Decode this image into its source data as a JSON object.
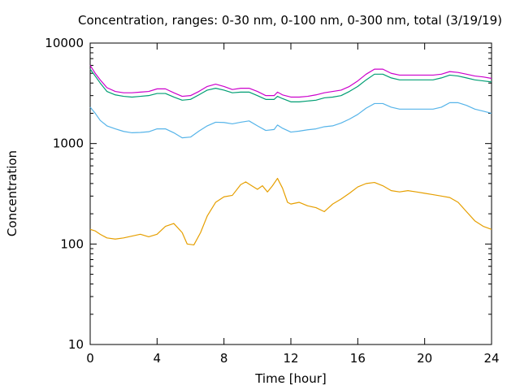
{
  "chart_data": {
    "type": "line",
    "title": "Concentration, ranges: 0-30 nm, 0-100 nm, 0-300 nm, total (3/19/19)",
    "xlabel": "Time [hour]",
    "ylabel": "Concentration",
    "xlim": [
      0,
      24
    ],
    "ylim": [
      10,
      10000
    ],
    "yscale": "log",
    "grid": false,
    "legend": "none",
    "x_ticks": [
      0,
      4,
      8,
      12,
      16,
      20,
      24
    ],
    "y_ticks": [
      10,
      100,
      1000,
      10000
    ],
    "x_tick_labels": [
      "0",
      "4",
      "8",
      "12",
      "16",
      "20",
      "24"
    ],
    "y_tick_labels": [
      "10",
      "100",
      "1000",
      "10000"
    ],
    "series": [
      {
        "color": "#e69f00",
        "x": [
          0,
          0.3,
          0.6,
          1,
          1.5,
          2,
          2.5,
          3,
          3.5,
          4,
          4.5,
          5,
          5.5,
          5.8,
          6.2,
          6.6,
          7,
          7.5,
          8,
          8.5,
          9,
          9.3,
          9.6,
          10,
          10.3,
          10.6,
          10.9,
          11.2,
          11.5,
          11.8,
          12,
          12.5,
          13,
          13.5,
          14,
          14.5,
          15,
          15.5,
          16,
          16.5,
          17,
          17.5,
          18,
          18.5,
          19,
          19.5,
          20,
          20.5,
          21,
          21.5,
          22,
          22.5,
          23,
          23.5,
          24
        ],
        "y": [
          140,
          135,
          125,
          115,
          112,
          115,
          120,
          125,
          118,
          125,
          150,
          160,
          130,
          100,
          98,
          130,
          190,
          260,
          295,
          305,
          390,
          415,
          385,
          350,
          380,
          330,
          380,
          450,
          360,
          260,
          250,
          260,
          240,
          230,
          210,
          250,
          280,
          320,
          370,
          400,
          410,
          380,
          340,
          330,
          340,
          330,
          320,
          310,
          300,
          290,
          260,
          210,
          170,
          150,
          140
        ]
      },
      {
        "color": "#56b4e9",
        "x": [
          0,
          0.3,
          0.6,
          1,
          1.5,
          2,
          2.5,
          3,
          3.5,
          4,
          4.5,
          5,
          5.5,
          6,
          6.5,
          7,
          7.5,
          8,
          8.5,
          9,
          9.5,
          10,
          10.5,
          11,
          11.2,
          11.5,
          12,
          12.5,
          13,
          13.5,
          14,
          14.5,
          15,
          15.5,
          16,
          16.5,
          17,
          17.5,
          18,
          18.5,
          19,
          19.5,
          20,
          20.5,
          21,
          21.5,
          22,
          22.5,
          23,
          23.5,
          24
        ],
        "y": [
          2300,
          2000,
          1700,
          1500,
          1400,
          1320,
          1280,
          1290,
          1310,
          1400,
          1400,
          1280,
          1140,
          1160,
          1330,
          1500,
          1630,
          1620,
          1570,
          1630,
          1680,
          1500,
          1350,
          1380,
          1530,
          1420,
          1300,
          1330,
          1370,
          1400,
          1470,
          1500,
          1600,
          1750,
          1950,
          2250,
          2500,
          2500,
          2300,
          2200,
          2200,
          2200,
          2200,
          2200,
          2300,
          2550,
          2550,
          2400,
          2200,
          2100,
          2000
        ]
      },
      {
        "color": "#009e73",
        "x": [
          0,
          0.3,
          0.6,
          1,
          1.5,
          2,
          2.5,
          3,
          3.5,
          4,
          4.5,
          5,
          5.5,
          6,
          6.5,
          7,
          7.5,
          8,
          8.5,
          9,
          9.5,
          10,
          10.5,
          11,
          11.2,
          11.5,
          12,
          12.5,
          13,
          13.5,
          14,
          14.5,
          15,
          15.5,
          16,
          16.5,
          17,
          17.5,
          18,
          18.5,
          19,
          19.5,
          20,
          20.5,
          21,
          21.5,
          22,
          22.5,
          23,
          23.5,
          24
        ],
        "y": [
          5500,
          4700,
          4000,
          3300,
          3050,
          2950,
          2900,
          2950,
          3000,
          3150,
          3150,
          2900,
          2700,
          2750,
          3050,
          3400,
          3550,
          3400,
          3200,
          3250,
          3250,
          3000,
          2750,
          2750,
          2950,
          2800,
          2600,
          2600,
          2650,
          2700,
          2850,
          2900,
          3000,
          3300,
          3700,
          4300,
          4900,
          4900,
          4500,
          4300,
          4300,
          4300,
          4300,
          4300,
          4500,
          4800,
          4700,
          4500,
          4300,
          4200,
          4100
        ]
      },
      {
        "color": "#cc00cc",
        "x": [
          0,
          0.3,
          0.6,
          1,
          1.5,
          2,
          2.5,
          3,
          3.5,
          4,
          4.5,
          5,
          5.5,
          6,
          6.5,
          7,
          7.5,
          8,
          8.5,
          9,
          9.5,
          10,
          10.5,
          11,
          11.2,
          11.5,
          12,
          12.5,
          13,
          13.5,
          14,
          14.5,
          15,
          15.5,
          16,
          16.5,
          17,
          17.5,
          18,
          18.5,
          19,
          19.5,
          20,
          20.5,
          21,
          21.5,
          22,
          22.5,
          23,
          23.5,
          24
        ],
        "y": [
          6000,
          5000,
          4300,
          3600,
          3300,
          3200,
          3200,
          3250,
          3300,
          3500,
          3500,
          3200,
          2950,
          3000,
          3300,
          3700,
          3900,
          3700,
          3450,
          3550,
          3550,
          3300,
          3000,
          3000,
          3250,
          3050,
          2900,
          2900,
          2950,
          3050,
          3200,
          3300,
          3400,
          3700,
          4200,
          4900,
          5500,
          5500,
          5000,
          4800,
          4800,
          4800,
          4800,
          4800,
          4900,
          5200,
          5100,
          4900,
          4700,
          4600,
          4450
        ]
      }
    ]
  }
}
